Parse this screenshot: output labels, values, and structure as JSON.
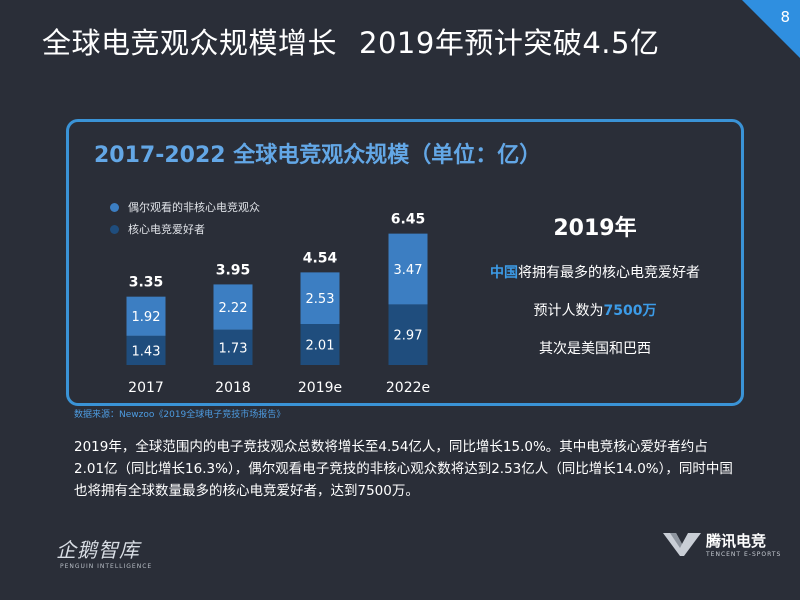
{
  "page_number": "8",
  "title": {
    "main": "全球电竞观众规模增长",
    "sub": "2019年预计突破4.5亿"
  },
  "panel_title": "2017-2022 全球电竞观众规模（单位：亿）",
  "legend": [
    {
      "label": "偶尔观看的非核心电竞观众",
      "color": "#3c7ec2"
    },
    {
      "label": "核心电竞爱好者",
      "color": "#1f4d7d"
    }
  ],
  "info": {
    "year": "2019年",
    "line1_highlight": "中国",
    "line1_rest": "将拥有最多的核心电竞爱好者",
    "line2_prefix": "预计人数为",
    "line2_highlight": "7500万",
    "line3": "其次是美国和巴西"
  },
  "source": "数据来源：Newzoo《2019全球电子竞技市场报告》",
  "paragraph": "2019年，全球范围内的电子竞技观众总数将增长至4.54亿人，同比增长15.0%。其中电竞核心爱好者约占2.01亿（同比增长16.3%），偶尔观看电子竞技的非核心观众数将达到2.53亿人（同比增长14.0%），同时中国也将拥有全球数量最多的核心电竞爱好者，达到7500万。",
  "logo_left": {
    "cn": "企鹅智库",
    "en": "PENGUIN INTELLIGENCE"
  },
  "logo_right": {
    "cn": "腾讯电竞",
    "en": "TENCENT E-SPORTS"
  },
  "chart_data": {
    "type": "bar",
    "stacked": true,
    "categories": [
      "2017",
      "2018",
      "2019e",
      "2022e"
    ],
    "series": [
      {
        "name": "核心电竞爱好者",
        "values": [
          1.43,
          1.73,
          2.01,
          2.97
        ],
        "color": "#1f4d7d"
      },
      {
        "name": "偶尔观看的非核心电竞观众",
        "values": [
          1.92,
          2.22,
          2.53,
          3.47
        ],
        "color": "#3c7ec2"
      }
    ],
    "totals": [
      "3.35",
      "3.95",
      "4.54",
      "6.45"
    ],
    "title": "2017-2022 全球电竞观众规模（单位：亿）",
    "legend_position": "top-left",
    "grid": false
  }
}
